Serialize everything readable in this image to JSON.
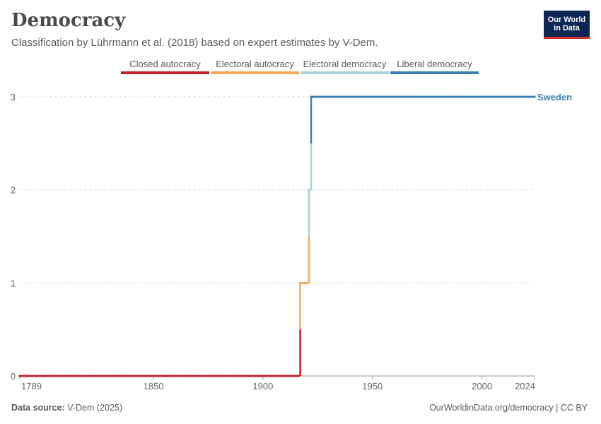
{
  "header": {
    "title": "Democracy",
    "subtitle": "Classification by Lührmann et al. (2018) based on expert estimates by V-Dem.",
    "logo_line1": "Our World",
    "logo_line2": "in Data"
  },
  "footer": {
    "source_label": "Data source:",
    "source_value": "V-Dem (2025)",
    "credit": "OurWorldinData.org/democracy | CC BY"
  },
  "colors": {
    "closed_autocracy": "#c8202b",
    "electoral_autocracy": "#f2a95b",
    "electoral_democracy": "#a7d3db",
    "liberal_democracy": "#3a7fb0",
    "grid": "#dddddd",
    "axis_text": "#666666"
  },
  "chart_data": {
    "type": "line",
    "title": "Democracy",
    "subtitle": "Classification by Lührmann et al. (2018) based on expert estimates by V-Dem.",
    "legend": [
      {
        "label": "Closed autocracy",
        "value": 0
      },
      {
        "label": "Electoral autocracy",
        "value": 1
      },
      {
        "label": "Electoral democracy",
        "value": 2
      },
      {
        "label": "Liberal democracy",
        "value": 3
      }
    ],
    "legend_position": "top-center",
    "grid": true,
    "xlim": [
      1789,
      2024
    ],
    "ylim": [
      0,
      3
    ],
    "x_ticks": [
      1789,
      1850,
      1900,
      1950,
      2000,
      2024
    ],
    "y_ticks": [
      0,
      1,
      2,
      3
    ],
    "series": [
      {
        "name": "Sweden",
        "segments": [
          {
            "from": 1789,
            "to": 1916,
            "value": 0
          },
          {
            "from": 1917,
            "to": 1920,
            "value": 1
          },
          {
            "from": 1921,
            "to": 1921,
            "value": 2
          },
          {
            "from": 1922,
            "to": 2024,
            "value": 3
          }
        ]
      }
    ]
  }
}
